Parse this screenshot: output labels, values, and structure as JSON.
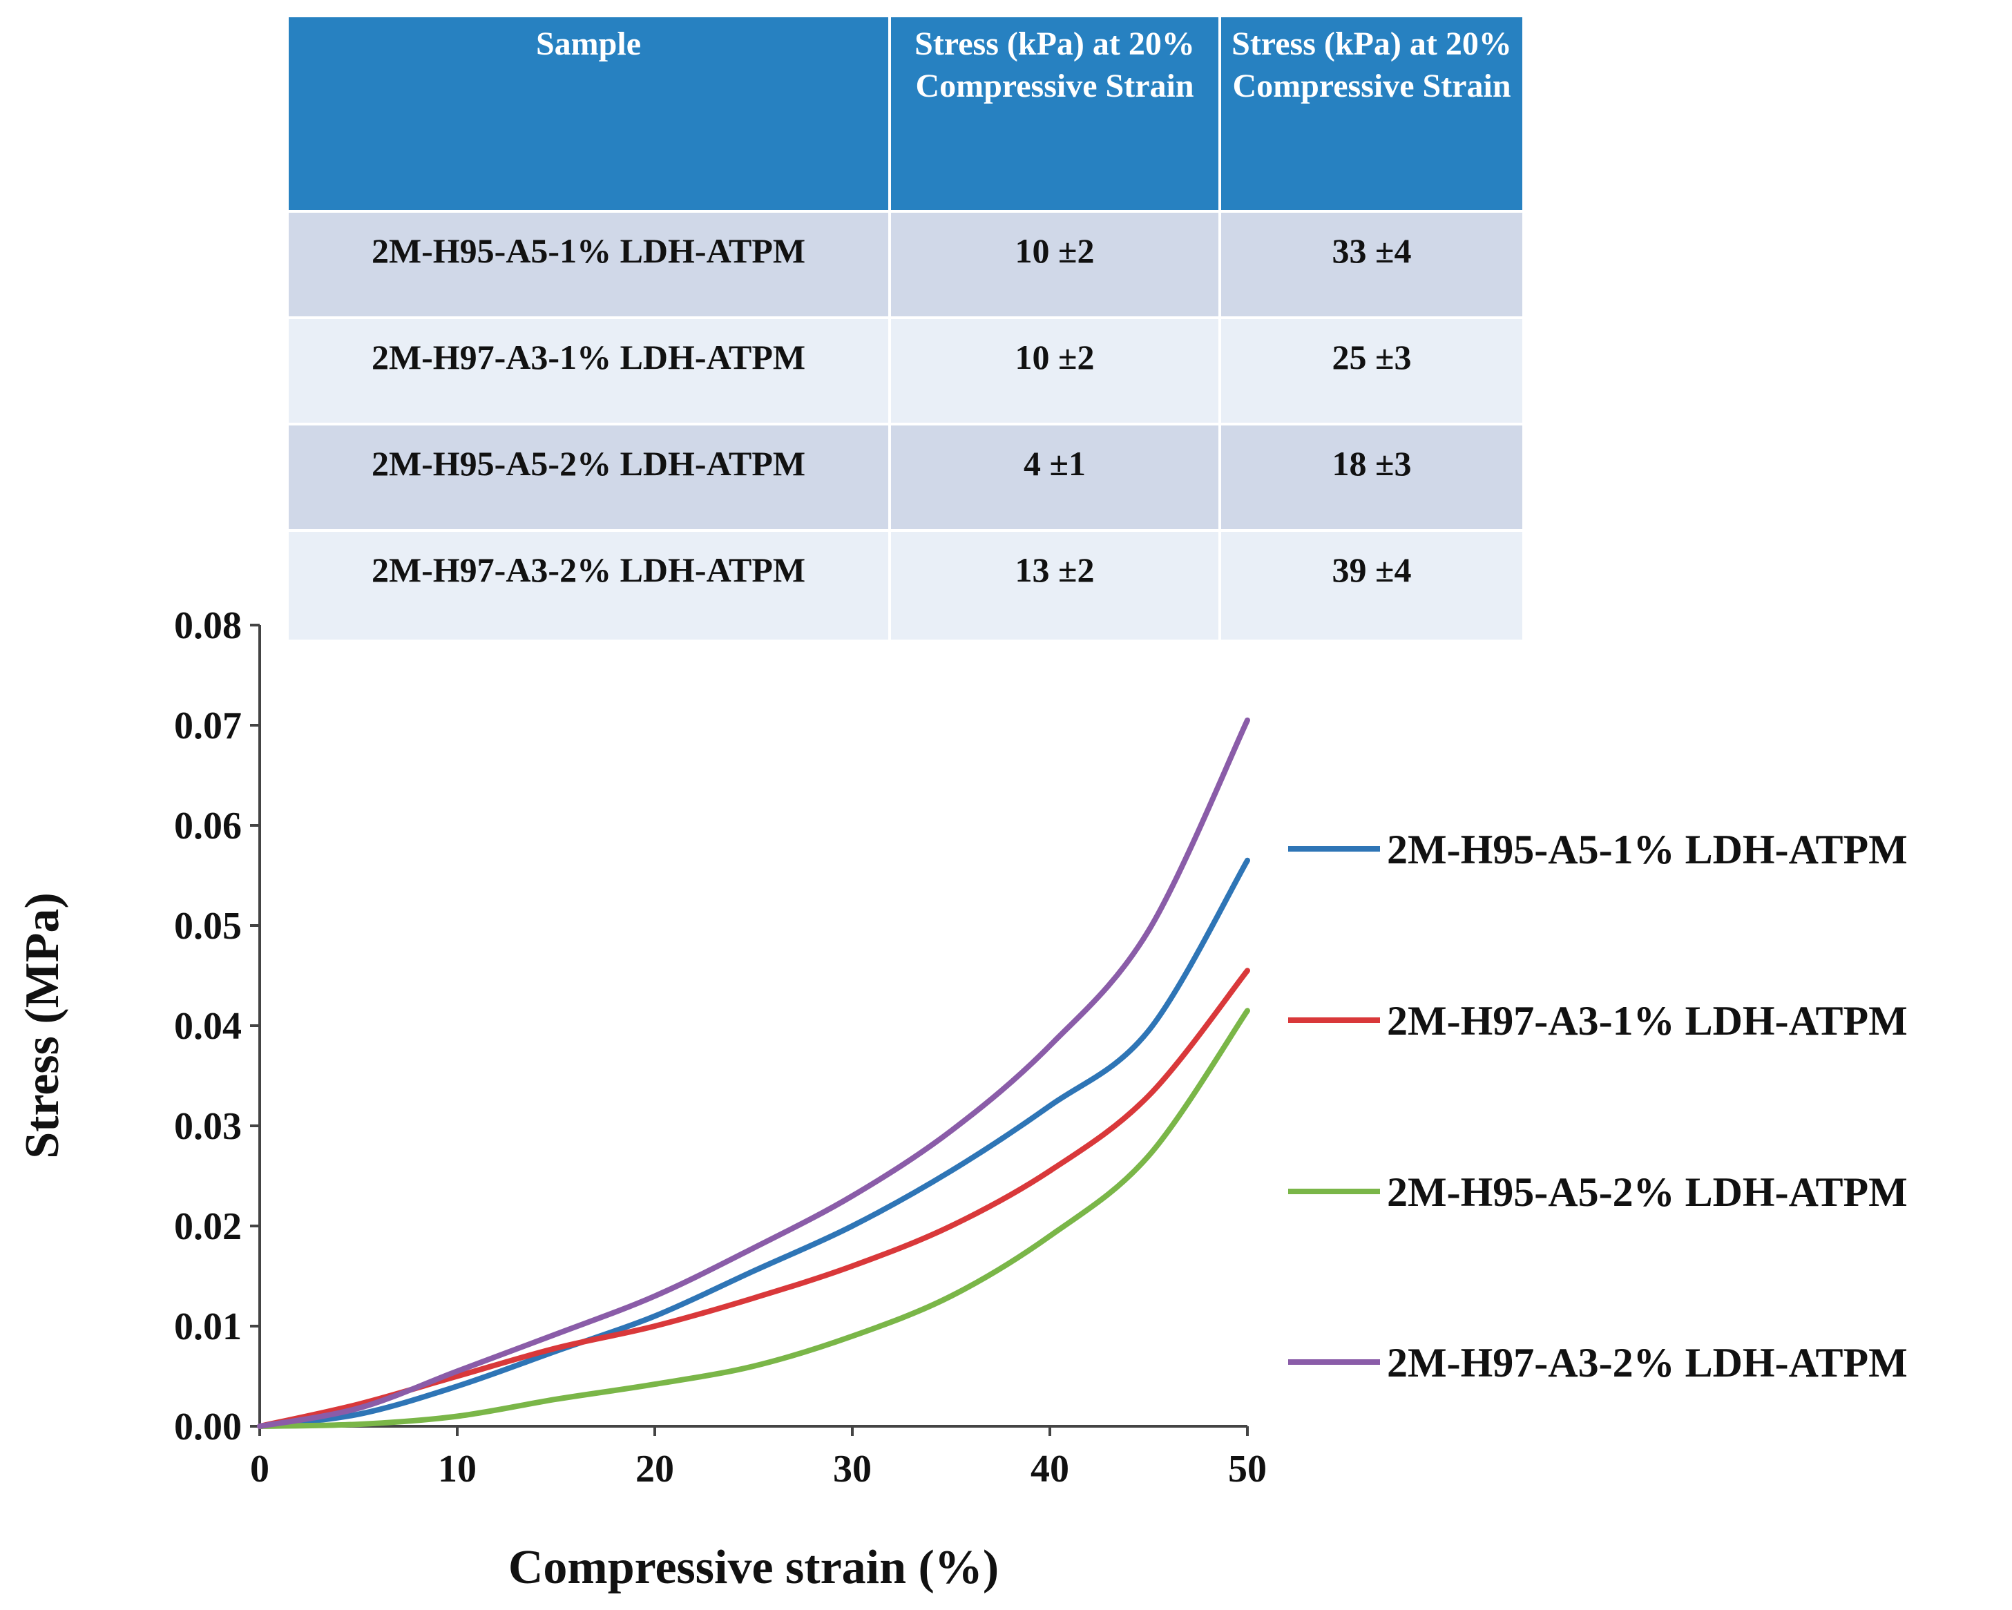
{
  "table": {
    "headers": [
      "Sample",
      "Stress (kPa) at 20% Compressive Strain",
      "Stress (kPa) at 20% Compressive Strain"
    ],
    "rows": [
      [
        "2M-H95-A5-1% LDH-ATPM",
        "10 ±2",
        "33 ±4"
      ],
      [
        "2M-H97-A3-1% LDH-ATPM",
        "10 ±2",
        "25 ±3"
      ],
      [
        "2M-H95-A5-2% LDH-ATPM",
        "4 ±1",
        "18 ±3"
      ],
      [
        "2M-H97-A3-2% LDH-ATPM",
        "13 ±2",
        "39 ±4"
      ]
    ],
    "colors": {
      "header_bg": "#2781c1",
      "row_odd_bg": "#d0d8e8",
      "row_even_bg": "#e9eff7"
    }
  },
  "chart_data": {
    "type": "line",
    "title": "",
    "xlabel": "Compressive strain (%)",
    "ylabel": "Stress (MPa)",
    "xlim": [
      0,
      50
    ],
    "ylim": [
      0,
      0.08
    ],
    "xticks": [
      "0",
      "10",
      "20",
      "30",
      "40",
      "50"
    ],
    "yticks": [
      "0.00",
      "0.01",
      "0.02",
      "0.03",
      "0.04",
      "0.05",
      "0.06",
      "0.07",
      "0.08"
    ],
    "grid": false,
    "legend_position": "right",
    "x": [
      0,
      5,
      10,
      15,
      20,
      25,
      30,
      35,
      40,
      45,
      50
    ],
    "series": [
      {
        "name": "2M-H95-A5-1% LDH-ATPM",
        "color": "#2e75b6",
        "values": [
          0,
          0.0012,
          0.004,
          0.0075,
          0.011,
          0.0155,
          0.02,
          0.0255,
          0.032,
          0.0395,
          0.0565
        ]
      },
      {
        "name": "2M-H97-A3-1% LDH-ATPM",
        "color": "#d9383a",
        "values": [
          0,
          0.0022,
          0.005,
          0.0078,
          0.01,
          0.0128,
          0.016,
          0.02,
          0.0255,
          0.033,
          0.0455
        ]
      },
      {
        "name": "2M-H95-A5-2% LDH-ATPM",
        "color": "#7ab648",
        "values": [
          0,
          0.0002,
          0.001,
          0.0027,
          0.0042,
          0.006,
          0.009,
          0.013,
          0.019,
          0.027,
          0.0415
        ]
      },
      {
        "name": "2M-H97-A3-2% LDH-ATPM",
        "color": "#8a5ca8",
        "values": [
          0,
          0.0018,
          0.0055,
          0.0092,
          0.013,
          0.0178,
          0.023,
          0.0295,
          0.038,
          0.0495,
          0.0705
        ]
      }
    ]
  }
}
